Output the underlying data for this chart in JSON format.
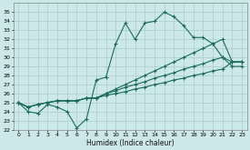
{
  "xlabel": "Humidex (Indice chaleur)",
  "ylabel": "",
  "bg_color": "#cce8e8",
  "grid_color": "#b0d4d4",
  "line_color": "#1a6b5a",
  "xlim": [
    -0.5,
    23.5
  ],
  "ylim": [
    22,
    36
  ],
  "yticks": [
    22,
    23,
    24,
    25,
    26,
    27,
    28,
    29,
    30,
    31,
    32,
    33,
    34,
    35
  ],
  "xticks": [
    0,
    1,
    2,
    3,
    4,
    5,
    6,
    7,
    8,
    9,
    10,
    11,
    12,
    13,
    14,
    15,
    16,
    17,
    18,
    19,
    20,
    21,
    22,
    23
  ],
  "series": [
    [
      25.0,
      24.0,
      23.8,
      24.8,
      24.5,
      24.0,
      22.2,
      23.2,
      27.5,
      27.8,
      31.5,
      33.8,
      32.0,
      33.8,
      34.0,
      35.0,
      34.5,
      33.5,
      32.2,
      32.2,
      31.5,
      30.0,
      29.0,
      29.0
    ],
    [
      25.0,
      24.5,
      24.8,
      25.0,
      25.2,
      25.2,
      25.2,
      25.5,
      25.5,
      26.0,
      26.5,
      27.0,
      27.5,
      28.0,
      28.5,
      29.0,
      29.5,
      30.0,
      30.5,
      31.0,
      31.5,
      32.0,
      29.5,
      29.5
    ],
    [
      25.0,
      24.5,
      24.8,
      25.0,
      25.2,
      25.2,
      25.2,
      25.5,
      25.5,
      26.0,
      26.3,
      26.7,
      27.0,
      27.3,
      27.7,
      28.0,
      28.3,
      28.7,
      29.0,
      29.3,
      29.7,
      30.0,
      29.5,
      29.5
    ],
    [
      25.0,
      24.5,
      24.8,
      25.0,
      25.2,
      25.2,
      25.2,
      25.5,
      25.5,
      25.8,
      26.0,
      26.2,
      26.5,
      26.7,
      27.0,
      27.2,
      27.5,
      27.7,
      28.0,
      28.2,
      28.5,
      28.7,
      29.5,
      29.5
    ]
  ]
}
